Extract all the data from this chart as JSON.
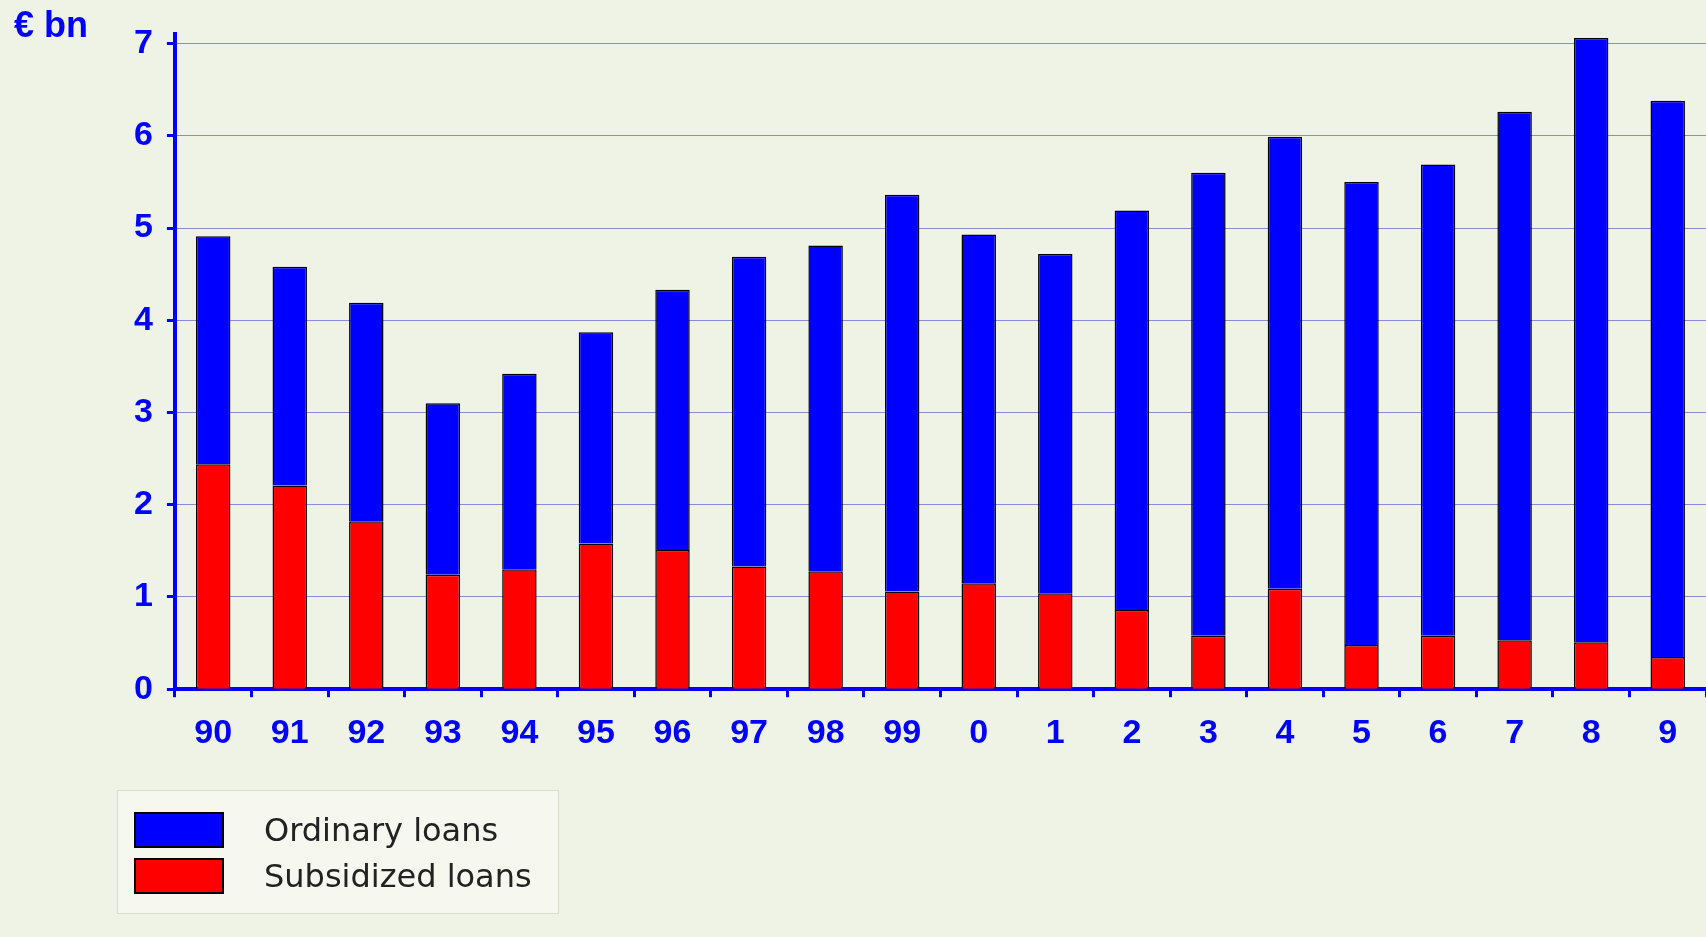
{
  "chart_data": {
    "type": "bar",
    "ylabel": "€ bn",
    "stacked": true,
    "categories": [
      "90",
      "91",
      "92",
      "93",
      "94",
      "95",
      "96",
      "97",
      "98",
      "99",
      "0",
      "1",
      "2",
      "3",
      "4",
      "5",
      "6",
      "7",
      "8",
      "9"
    ],
    "series": [
      {
        "name": "Subsidized loans",
        "color": "#ff0000",
        "values": [
          2.44,
          2.21,
          1.82,
          1.24,
          1.3,
          1.58,
          1.51,
          1.33,
          1.28,
          1.06,
          1.15,
          1.04,
          0.86,
          0.58,
          1.09,
          0.48,
          0.58,
          0.53,
          0.51,
          0.35
        ]
      },
      {
        "name": "Ordinary loans",
        "color": "#0000ff",
        "values": [
          2.47,
          2.37,
          2.37,
          1.86,
          2.12,
          2.29,
          2.82,
          3.36,
          3.53,
          4.3,
          3.78,
          3.68,
          4.33,
          5.02,
          4.9,
          5.02,
          5.11,
          5.73,
          6.55,
          6.03
        ]
      }
    ],
    "ylim": [
      0,
      7.1
    ],
    "yticks": [
      0,
      1,
      2,
      3,
      4,
      5,
      6,
      7
    ],
    "grid": "y",
    "legend": "bottom left"
  }
}
